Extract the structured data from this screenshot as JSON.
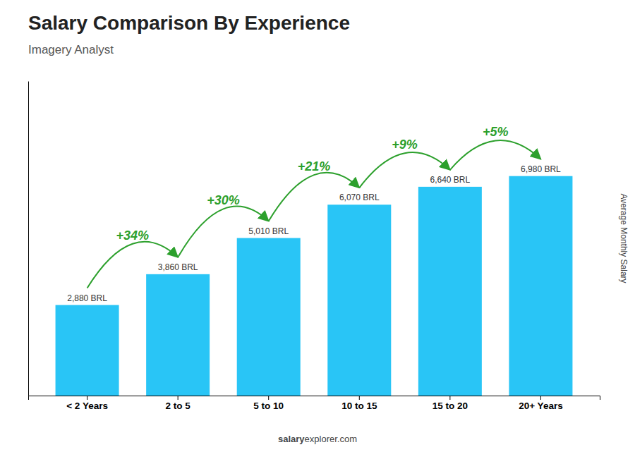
{
  "chart_data": {
    "type": "bar",
    "title": "Salary Comparison By Experience",
    "subtitle": "Imagery Analyst",
    "ylabel": "Average Monthly Salary",
    "footer": [
      "salary",
      "explorer.com"
    ],
    "categories": [
      "< 2 Years",
      "2 to 5",
      "5 to 10",
      "10 to 15",
      "15 to 20",
      "20+ Years"
    ],
    "values": [
      2880,
      3860,
      5010,
      6070,
      6640,
      6980
    ],
    "value_labels": [
      "2,880 BRL",
      "3,860 BRL",
      "5,010 BRL",
      "6,070 BRL",
      "6,640 BRL",
      "6,980 BRL"
    ],
    "data_labels": true,
    "annotations": [
      "+34%",
      "+30%",
      "+21%",
      "+9%",
      "+5%"
    ],
    "color": "#29c5f6",
    "ylim": [
      0,
      10000
    ],
    "tick_labels": "x",
    "grid": false
  }
}
